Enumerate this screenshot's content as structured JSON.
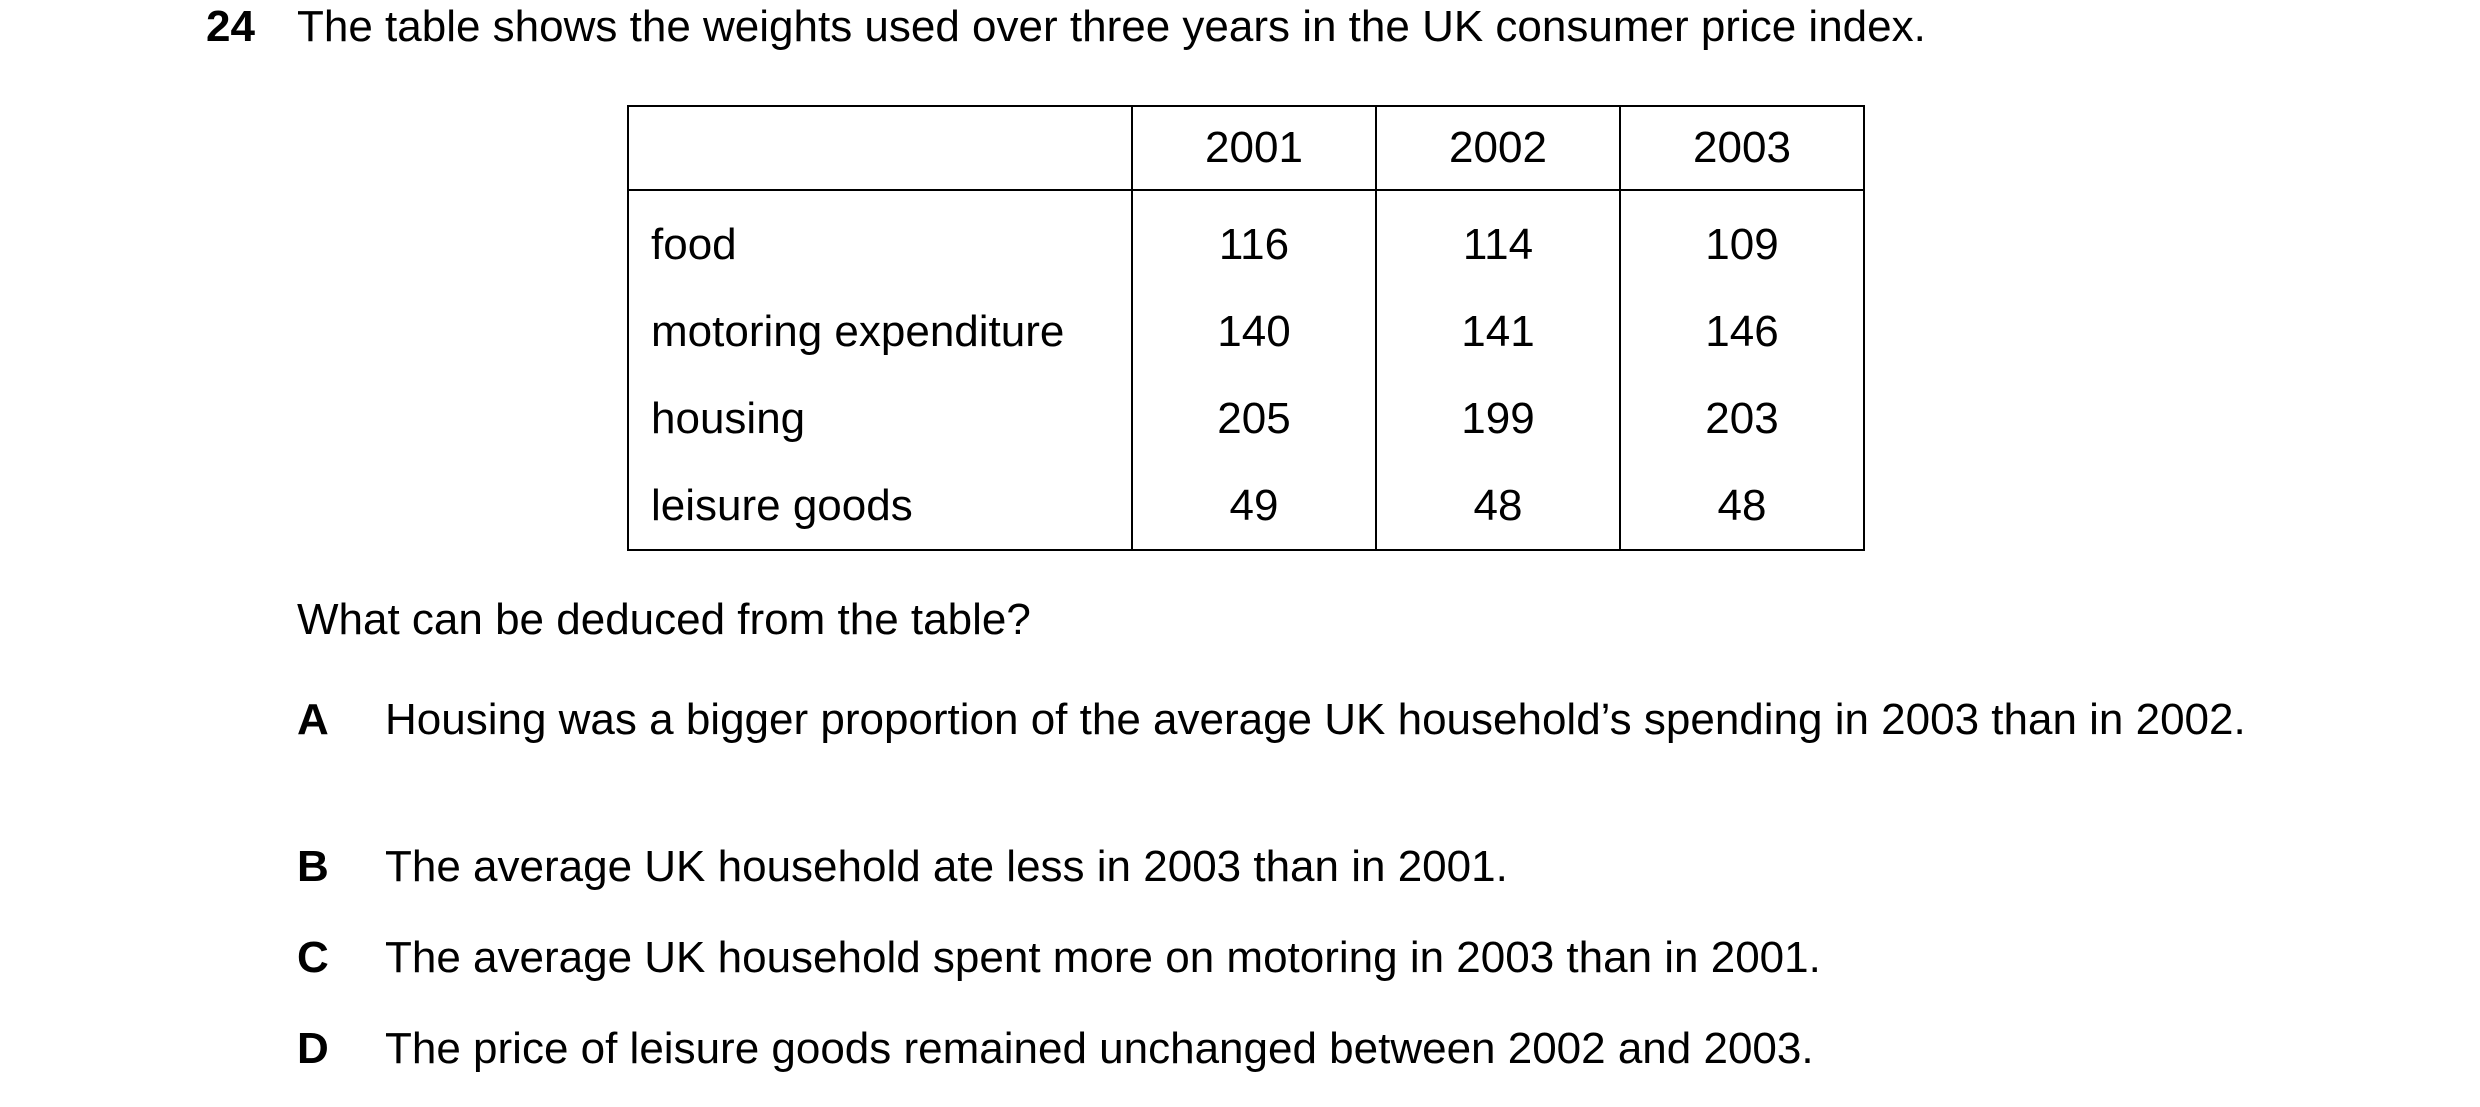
{
  "question": {
    "number": "24",
    "stem": "The table shows the weights used over three years in the UK consumer price index.",
    "prompt": "What can be deduced from the table?"
  },
  "table": {
    "corner": "",
    "years": [
      "2001",
      "2002",
      "2003"
    ],
    "rows": [
      {
        "label": "food",
        "values": [
          "116",
          "114",
          "109"
        ]
      },
      {
        "label": "motoring expenditure",
        "values": [
          "140",
          "141",
          "146"
        ]
      },
      {
        "label": "housing",
        "values": [
          "205",
          "199",
          "203"
        ]
      },
      {
        "label": "leisure goods",
        "values": [
          "49",
          "48",
          "48"
        ]
      }
    ]
  },
  "options": [
    {
      "letter": "A",
      "text": "Housing was a bigger proportion of the average UK household’s spending in 2003 than in 2002."
    },
    {
      "letter": "B",
      "text": "The average UK household ate less in 2003 than in 2001."
    },
    {
      "letter": "C",
      "text": "The average UK household spent more on motoring in 2003 than in 2001."
    },
    {
      "letter": "D",
      "text": "The price of leisure goods remained unchanged between 2002 and 2003."
    }
  ]
}
